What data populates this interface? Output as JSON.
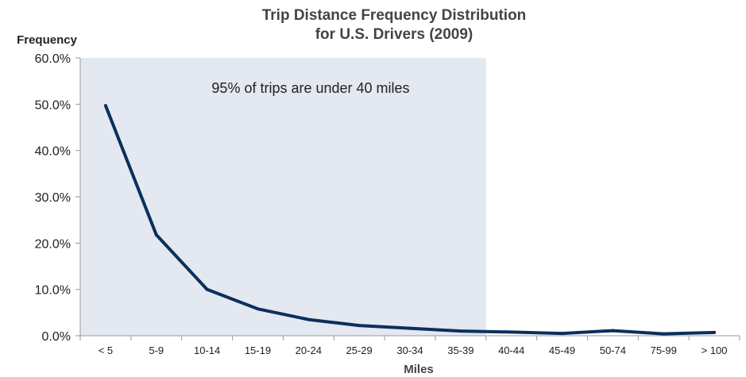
{
  "chart_data": {
    "type": "line",
    "title": "Trip Distance Frequency Distribution",
    "subtitle": "for U.S. Drivers (2009)",
    "xlabel": "Miles",
    "ylabel": "Frequency",
    "categories": [
      "< 5",
      "5-9",
      "10-14",
      "15-19",
      "20-24",
      "25-29",
      "30-34",
      "35-39",
      "40-44",
      "45-49",
      "50-74",
      "75-99",
      "> 100"
    ],
    "series": [
      {
        "values": [
          49.7,
          21.8,
          10.0,
          5.8,
          3.5,
          2.2,
          1.6,
          1.0,
          0.8,
          0.5,
          1.1,
          0.4,
          0.7
        ]
      }
    ],
    "ylim": [
      0,
      60
    ],
    "yticks": [
      "0.0%",
      "10.0%",
      "20.0%",
      "30.0%",
      "40.0%",
      "50.0%",
      "60.0%"
    ],
    "shaded_region": {
      "from_category": "< 5",
      "to_category": "35-39",
      "label": "95% of trips are under 40 miles"
    },
    "grid": false,
    "legend": "none",
    "colors": {
      "line": "#0b2f5a",
      "shade": "#e3e8f1",
      "axis": "#9a9a9a",
      "text": "#222222"
    }
  }
}
